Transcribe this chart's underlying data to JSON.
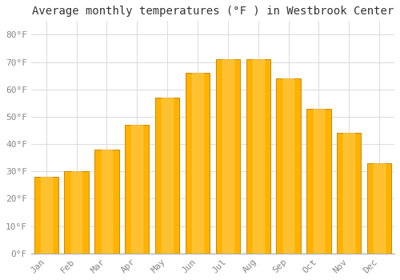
{
  "months": [
    "Jan",
    "Feb",
    "Mar",
    "Apr",
    "May",
    "Jun",
    "Jul",
    "Aug",
    "Sep",
    "Oct",
    "Nov",
    "Dec"
  ],
  "values": [
    28,
    30,
    38,
    47,
    57,
    66,
    71,
    71,
    64,
    53,
    44,
    33
  ],
  "bar_color_light": "#FFB300",
  "bar_color_edge": "#CC8000",
  "title": "Average monthly temperatures (°F ) in Westbrook Center",
  "ylim": [
    0,
    85
  ],
  "yticks": [
    0,
    10,
    20,
    30,
    40,
    50,
    60,
    70,
    80
  ],
  "ytick_labels": [
    "0°F",
    "10°F",
    "20°F",
    "30°F",
    "40°F",
    "50°F",
    "60°F",
    "70°F",
    "80°F"
  ],
  "background_color": "#FFFFFF",
  "grid_color": "#DDDDDD",
  "title_fontsize": 10,
  "tick_fontsize": 8,
  "tick_color": "#888888",
  "font_family": "monospace",
  "bar_width": 0.8
}
